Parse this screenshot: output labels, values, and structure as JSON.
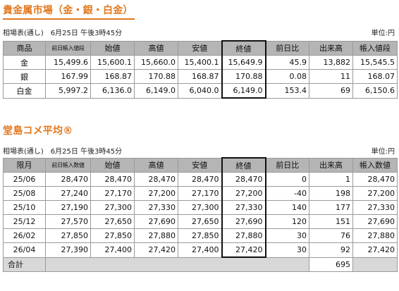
{
  "precious": {
    "title": "貴金属市場（金・銀・白金）",
    "subtitle": "相場表(通し)　6月25日 午後3時45分",
    "unit": "単位:円",
    "headers": [
      "商品",
      "前日帳入値段",
      "始値",
      "高値",
      "安値",
      "終値",
      "前日比",
      "出来高",
      "帳入値段"
    ],
    "rows": [
      [
        "金",
        "15,499.6",
        "15,600.1",
        "15,660.0",
        "15,400.1",
        "15,649.9",
        "45.9",
        "13,882",
        "15,545.5"
      ],
      [
        "銀",
        "167.99",
        "168.87",
        "170.88",
        "168.87",
        "170.88",
        "0.08",
        "11",
        "168.07"
      ],
      [
        "白金",
        "5,997.2",
        "6,136.0",
        "6,149.0",
        "6,040.0",
        "6,149.0",
        "153.4",
        "69",
        "6,150.6"
      ]
    ]
  },
  "rice": {
    "title": "堂島コメ平均®",
    "subtitle": "相場表(通し)　6月25日 午後3時45分",
    "unit": "単位:円",
    "headers": [
      "限月",
      "前日帳入数値",
      "始値",
      "高値",
      "安値",
      "終値",
      "前日比",
      "出来高",
      "帳入数値"
    ],
    "rows": [
      [
        "25/06",
        "28,470",
        "28,470",
        "28,470",
        "28,470",
        "28,470",
        "0",
        "1",
        "28,470"
      ],
      [
        "25/08",
        "27,240",
        "27,170",
        "27,200",
        "27,170",
        "27,200",
        "-40",
        "198",
        "27,200"
      ],
      [
        "25/10",
        "27,190",
        "27,300",
        "27,330",
        "27,300",
        "27,330",
        "140",
        "177",
        "27,330"
      ],
      [
        "25/12",
        "27,570",
        "27,650",
        "27,690",
        "27,650",
        "27,690",
        "120",
        "151",
        "27,690"
      ],
      [
        "26/02",
        "27,850",
        "27,850",
        "27,880",
        "27,850",
        "27,880",
        "30",
        "76",
        "27,880"
      ],
      [
        "26/04",
        "27,390",
        "27,400",
        "27,420",
        "27,400",
        "27,420",
        "30",
        "92",
        "27,420"
      ]
    ],
    "total_label": "合計",
    "total_volume": "695"
  },
  "colors": {
    "title_accent": "#E2781E",
    "header_bg": "#b5b5b5",
    "total_bg": "#d8d8d8",
    "highlight_border": "#111111"
  }
}
